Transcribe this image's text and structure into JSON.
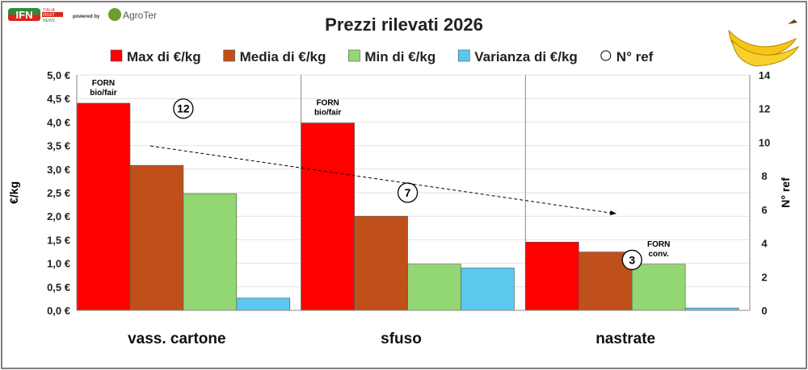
{
  "logo": {
    "brand": "IFN",
    "sub": [
      "ITALIA",
      "FRUIT",
      "NEWS"
    ],
    "powered": "powered by",
    "partner": "AgroTer"
  },
  "chart_data": {
    "type": "bar",
    "title": "Prezzi rilevati 2026",
    "categories": [
      "vass. cartone",
      "sfuso",
      "nastrate"
    ],
    "series": [
      {
        "name": "Max di €/kg",
        "color": "#ff0000",
        "values": [
          4.4,
          3.98,
          1.45
        ]
      },
      {
        "name": "Media di €/kg",
        "color": "#c0501a",
        "values": [
          3.08,
          2.0,
          1.24
        ]
      },
      {
        "name": "Min di €/kg",
        "color": "#92d773",
        "values": [
          2.48,
          0.98,
          0.98
        ]
      },
      {
        "name": "Varianza di €/kg",
        "color": "#5bc8ee",
        "values": [
          0.26,
          0.9,
          0.05
        ]
      }
    ],
    "nref": {
      "name": "N° ref",
      "values": [
        12,
        7,
        3
      ]
    },
    "ylabel": "€/kg",
    "y2label": "N° ref",
    "ylim": [
      0,
      5
    ],
    "y2lim": [
      0,
      14
    ],
    "yticks": [
      "0,0 €",
      "0,5 €",
      "1,0 €",
      "1,5 €",
      "2,0 €",
      "2,5 €",
      "3,0 €",
      "3,5 €",
      "4,0 €",
      "4,5 €",
      "5,0 €"
    ],
    "y2ticks": [
      "0",
      "2",
      "4",
      "6",
      "8",
      "10",
      "12",
      "14"
    ],
    "annotations": [
      {
        "text": [
          "FORN",
          "bio/fair"
        ],
        "category": 0,
        "series": 0
      },
      {
        "text": [
          "FORN",
          "bio/fair"
        ],
        "category": 1,
        "series": 0
      },
      {
        "text": [
          "FORN",
          "conv."
        ],
        "category": 2,
        "series": 2
      }
    ],
    "trendline": "dashed arrow from vass. cartone to nastrate",
    "legend": "top",
    "grid": true
  }
}
